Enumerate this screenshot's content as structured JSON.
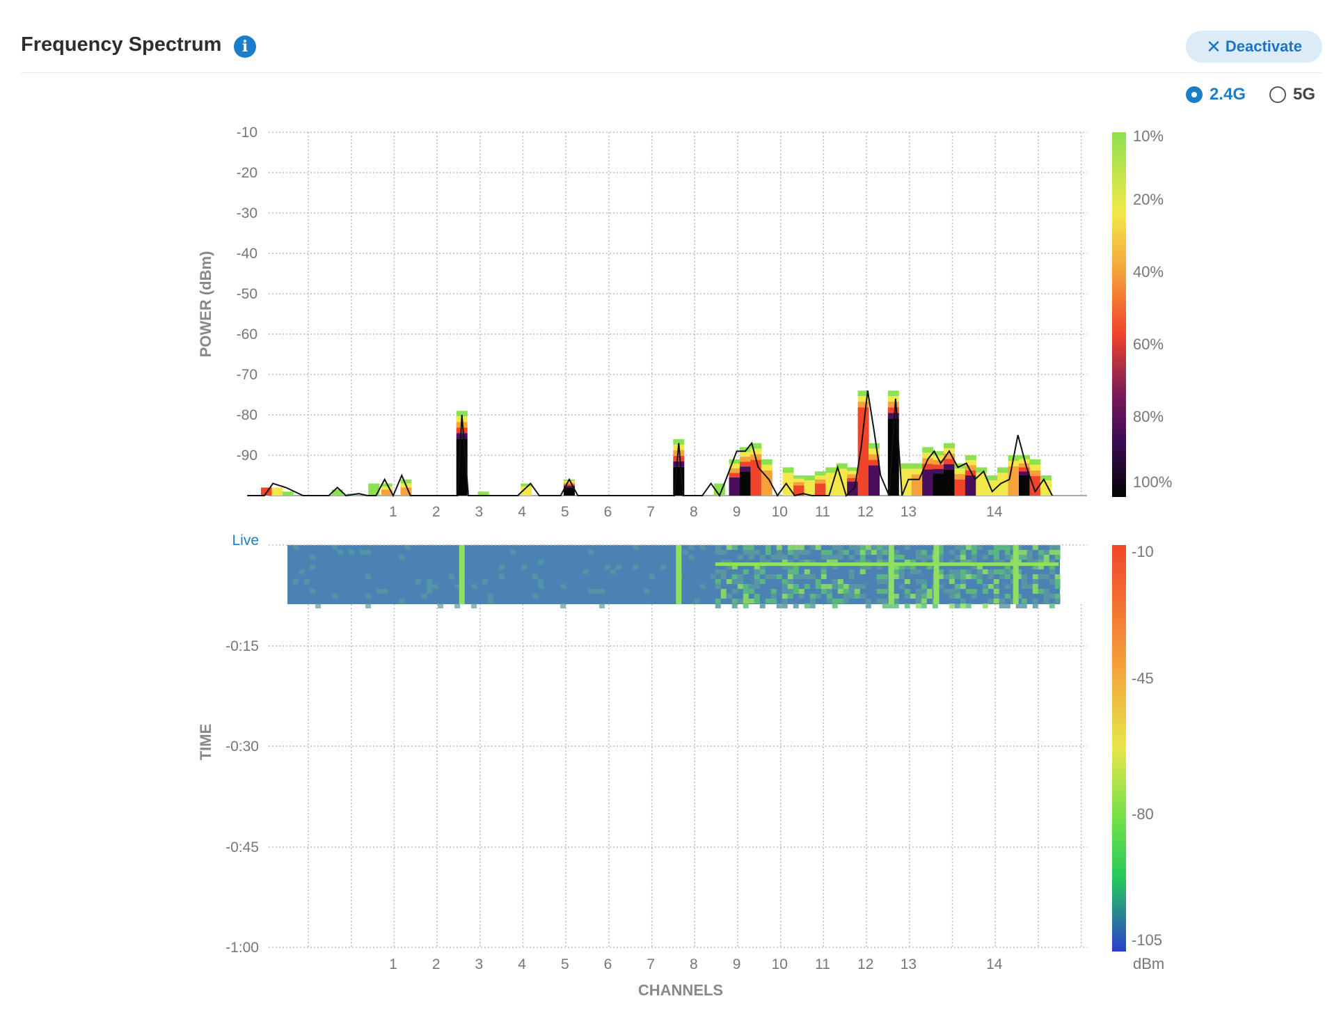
{
  "header": {
    "title": "Frequency Spectrum",
    "info_icon": "info-icon",
    "deactivate_label": "Deactivate"
  },
  "band_selector": {
    "options": [
      "2.4G",
      "5G"
    ],
    "selected": "2.4G"
  },
  "colors": {
    "accent": "#1c7ec8",
    "heatmap_bg": "#4a82b4",
    "live_label": "#1c7ec8"
  },
  "chart_data": [
    {
      "type": "bar",
      "name": "spectrum",
      "ylabel": "POWER (dBm)",
      "yticks": [
        "-10",
        "-20",
        "-30",
        "-40",
        "-50",
        "-60",
        "-70",
        "-80",
        "-90"
      ],
      "ylim": [
        -100,
        -10
      ],
      "xticks": [
        "1",
        "2",
        "3",
        "4",
        "5",
        "6",
        "7",
        "8",
        "9",
        "10",
        "11",
        "12",
        "13",
        "14"
      ],
      "grid": true,
      "colorscale": {
        "labels": [
          "10%",
          "20%",
          "40%",
          "60%",
          "80%",
          "100%"
        ]
      },
      "bars": [
        {
          "ch": -1.95,
          "top": -98,
          "base": "red"
        },
        {
          "ch": -1.7,
          "top": -98,
          "base": "yellow"
        },
        {
          "ch": -1.45,
          "top": -99,
          "base": "green"
        },
        {
          "ch": -0.3,
          "top": -98.5,
          "base": "green"
        },
        {
          "ch": 0.05,
          "top": -99.5,
          "base": "green"
        },
        {
          "ch": 0.55,
          "top": -97,
          "base": "green"
        },
        {
          "ch": 0.85,
          "top": -97,
          "base": "orange"
        },
        {
          "ch": 1.3,
          "top": -96,
          "base": "orange"
        },
        {
          "ch": 2.6,
          "top": -79,
          "base": "black"
        },
        {
          "ch": 3.1,
          "top": -99,
          "base": "green"
        },
        {
          "ch": 4.1,
          "top": -97,
          "base": "yellow"
        },
        {
          "ch": 5.1,
          "top": -96,
          "base": "black"
        },
        {
          "ch": 7.65,
          "top": -86,
          "base": "black"
        },
        {
          "ch": 8.6,
          "top": -97,
          "base": "green"
        },
        {
          "ch": 8.95,
          "top": -91,
          "base": "purple"
        },
        {
          "ch": 9.2,
          "top": -88,
          "base": "black"
        },
        {
          "ch": 9.45,
          "top": -87,
          "base": "red"
        },
        {
          "ch": 9.7,
          "top": -91,
          "base": "orange"
        },
        {
          "ch": 10.2,
          "top": -93,
          "base": "yellow"
        },
        {
          "ch": 10.45,
          "top": -95,
          "base": "red"
        },
        {
          "ch": 10.7,
          "top": -95,
          "base": "yellow"
        },
        {
          "ch": 10.95,
          "top": -94,
          "base": "red"
        },
        {
          "ch": 11.2,
          "top": -93,
          "base": "yellow"
        },
        {
          "ch": 11.45,
          "top": -92,
          "base": "yellow"
        },
        {
          "ch": 11.7,
          "top": -93,
          "base": "purple"
        },
        {
          "ch": 11.95,
          "top": -74,
          "base": "red"
        },
        {
          "ch": 12.2,
          "top": -87,
          "base": "purple"
        },
        {
          "ch": 12.65,
          "top": -74,
          "base": "black"
        },
        {
          "ch": 12.95,
          "top": -92,
          "base": "yellow"
        },
        {
          "ch": 13.2,
          "top": -92,
          "base": "orange"
        },
        {
          "ch": 13.45,
          "top": -88,
          "base": "purple"
        },
        {
          "ch": 13.7,
          "top": -89,
          "base": "black"
        },
        {
          "ch": 13.95,
          "top": -87,
          "base": "black"
        },
        {
          "ch": 14.2,
          "top": -92,
          "base": "red"
        },
        {
          "ch": 14.45,
          "top": -90,
          "base": "purple"
        },
        {
          "ch": 14.7,
          "top": -93,
          "base": "yellow"
        },
        {
          "ch": 14.95,
          "top": -95,
          "base": "yellow"
        },
        {
          "ch": 15.2,
          "top": -93,
          "base": "yellow"
        },
        {
          "ch": 15.45,
          "top": -90,
          "base": "orange"
        },
        {
          "ch": 15.7,
          "top": -90,
          "base": "black"
        },
        {
          "ch": 15.95,
          "top": -91,
          "base": "red"
        },
        {
          "ch": 16.2,
          "top": -95,
          "base": "yellow"
        }
      ],
      "line": [
        {
          "ch": -2.4,
          "y": -100
        },
        {
          "ch": -2.0,
          "y": -100
        },
        {
          "ch": -1.8,
          "y": -97
        },
        {
          "ch": -1.5,
          "y": -98
        },
        {
          "ch": -1.1,
          "y": -100
        },
        {
          "ch": -0.5,
          "y": -100
        },
        {
          "ch": -0.3,
          "y": -98
        },
        {
          "ch": -0.1,
          "y": -100
        },
        {
          "ch": 0.2,
          "y": -99.5
        },
        {
          "ch": 0.4,
          "y": -100
        },
        {
          "ch": 0.6,
          "y": -100
        },
        {
          "ch": 0.8,
          "y": -96
        },
        {
          "ch": 1.0,
          "y": -100
        },
        {
          "ch": 1.2,
          "y": -95
        },
        {
          "ch": 1.4,
          "y": -100
        },
        {
          "ch": 2.5,
          "y": -100
        },
        {
          "ch": 2.6,
          "y": -80
        },
        {
          "ch": 2.75,
          "y": -100
        },
        {
          "ch": 3.9,
          "y": -100
        },
        {
          "ch": 4.2,
          "y": -97
        },
        {
          "ch": 4.4,
          "y": -100
        },
        {
          "ch": 4.9,
          "y": -100
        },
        {
          "ch": 5.1,
          "y": -96
        },
        {
          "ch": 5.3,
          "y": -100
        },
        {
          "ch": 7.55,
          "y": -100
        },
        {
          "ch": 7.65,
          "y": -87
        },
        {
          "ch": 7.75,
          "y": -100
        },
        {
          "ch": 8.2,
          "y": -100
        },
        {
          "ch": 8.4,
          "y": -97
        },
        {
          "ch": 8.6,
          "y": -100
        },
        {
          "ch": 8.75,
          "y": -96
        },
        {
          "ch": 9.0,
          "y": -89
        },
        {
          "ch": 9.2,
          "y": -89
        },
        {
          "ch": 9.35,
          "y": -87
        },
        {
          "ch": 9.5,
          "y": -93
        },
        {
          "ch": 9.75,
          "y": -96
        },
        {
          "ch": 9.95,
          "y": -100
        },
        {
          "ch": 10.15,
          "y": -97
        },
        {
          "ch": 10.35,
          "y": -100
        },
        {
          "ch": 10.55,
          "y": -99.5
        },
        {
          "ch": 10.75,
          "y": -100
        },
        {
          "ch": 10.95,
          "y": -100
        },
        {
          "ch": 11.15,
          "y": -100
        },
        {
          "ch": 11.35,
          "y": -93
        },
        {
          "ch": 11.55,
          "y": -100
        },
        {
          "ch": 11.75,
          "y": -98
        },
        {
          "ch": 11.9,
          "y": -88
        },
        {
          "ch": 12.05,
          "y": -74
        },
        {
          "ch": 12.2,
          "y": -84
        },
        {
          "ch": 12.35,
          "y": -95
        },
        {
          "ch": 12.55,
          "y": -100
        },
        {
          "ch": 12.7,
          "y": -76
        },
        {
          "ch": 12.85,
          "y": -100
        },
        {
          "ch": 13.0,
          "y": -96
        },
        {
          "ch": 13.25,
          "y": -96
        },
        {
          "ch": 13.45,
          "y": -91
        },
        {
          "ch": 13.6,
          "y": -89
        },
        {
          "ch": 13.75,
          "y": -92
        },
        {
          "ch": 13.95,
          "y": -89
        },
        {
          "ch": 14.15,
          "y": -93
        },
        {
          "ch": 14.35,
          "y": -92
        },
        {
          "ch": 14.55,
          "y": -96
        },
        {
          "ch": 14.75,
          "y": -94
        },
        {
          "ch": 14.95,
          "y": -99
        },
        {
          "ch": 15.15,
          "y": -97
        },
        {
          "ch": 15.35,
          "y": -96
        },
        {
          "ch": 15.55,
          "y": -85
        },
        {
          "ch": 15.75,
          "y": -93
        },
        {
          "ch": 15.95,
          "y": -99
        },
        {
          "ch": 16.15,
          "y": -96
        },
        {
          "ch": 16.35,
          "y": -100
        }
      ]
    },
    {
      "type": "heatmap",
      "name": "waterfall",
      "ylabel": "TIME",
      "xlabel": "CHANNELS",
      "yticks": [
        "Live",
        "-0:15",
        "-0:30",
        "-0:45",
        "-1:00"
      ],
      "xticks": [
        "1",
        "2",
        "3",
        "4",
        "5",
        "6",
        "7",
        "8",
        "9",
        "10",
        "11",
        "12",
        "13",
        "14"
      ],
      "colorscale": {
        "labels": [
          "-10",
          "-45",
          "-80",
          "-105"
        ],
        "unit": "dBm"
      },
      "hot_columns_ch": [
        2.6,
        7.65,
        12.6,
        13.65,
        15.5
      ],
      "hot_row_range_ch": [
        8.5,
        16.5
      ]
    }
  ]
}
